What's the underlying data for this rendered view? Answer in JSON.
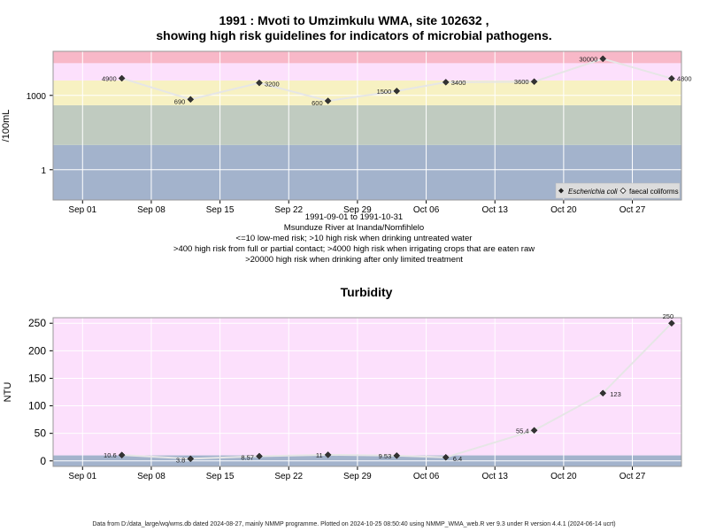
{
  "title_line1": "1991 : Mvoti to Umzimkulu WMA, site 102632 ,",
  "title_line2": "showing high risk guidelines for indicators of microbial pathogens.",
  "notes": [
    "1991-09-01 to 1991-10-31",
    "Msunduze River at Inanda/Nomfihlelo",
    "<=10 low-med risk; >10 high risk when drinking untreated water",
    ">400 high risk from full or partial contact; >4000 high risk when irrigating crops that are eaten raw",
    ">20000 high risk when drinking after only limited treatment"
  ],
  "footer": "Data from D:/data_large/wq/wms.db dated 2024-08-27, mainly NMMP programme. Plotted on 2024-10-25 08:50:40 using NMMP_WMA_web.R ver 9.3 under R version 4.4.1 (2024-06-14 ucrt)",
  "chart_data": [
    {
      "type": "line",
      "title": "",
      "ylabel": "/100mL",
      "y_scale": "log10",
      "ylim": [
        0.06,
        60000
      ],
      "y_ticks": [
        1,
        1000
      ],
      "x_ticks": [
        "Sep 01",
        "Sep 08",
        "Sep 15",
        "Sep 22",
        "Sep 29",
        "Oct 06",
        "Oct 13",
        "Oct 20",
        "Oct 27"
      ],
      "x_range": [
        "1991-08-29",
        "1991-11-01"
      ],
      "grid": true,
      "legend_position": "bottom-right",
      "bands": [
        {
          "from": 0.06,
          "to": 10,
          "color": "#a3b3cc"
        },
        {
          "from": 10,
          "to": 400,
          "color": "#c0cbc0"
        },
        {
          "from": 400,
          "to": 4000,
          "color": "#f7f1c2"
        },
        {
          "from": 4000,
          "to": 20000,
          "color": "#fce0fc"
        },
        {
          "from": 20000,
          "to": 60000,
          "color": "#f8b8c8"
        }
      ],
      "series": [
        {
          "name": "Escherichia coli",
          "marker": "filled",
          "x": [
            "1991-09-05",
            "1991-09-12",
            "1991-09-19",
            "1991-09-26",
            "1991-10-03",
            "1991-10-08",
            "1991-10-17",
            "1991-10-24",
            "1991-10-31"
          ],
          "values": [
            4900,
            690,
            3200,
            600,
            1500,
            3400,
            3600,
            30000,
            4800
          ],
          "labels": [
            "4900",
            "690",
            "3200",
            "600",
            "1500",
            "3400",
            "3600",
            "30000",
            "4800"
          ]
        },
        {
          "name": "faecal coliforms",
          "marker": "open",
          "x": [],
          "values": []
        }
      ]
    },
    {
      "type": "line",
      "title": "Turbidity",
      "ylabel": "NTU",
      "ylim": [
        -10,
        260
      ],
      "y_ticks": [
        0,
        50,
        100,
        150,
        200,
        250
      ],
      "x_ticks": [
        "Sep 01",
        "Sep 08",
        "Sep 15",
        "Sep 22",
        "Sep 29",
        "Oct 06",
        "Oct 13",
        "Oct 20",
        "Oct 27"
      ],
      "x_range": [
        "1991-08-29",
        "1991-11-01"
      ],
      "grid": true,
      "bands": [
        {
          "from": -10,
          "to": 10,
          "color": "#a3b3cc"
        },
        {
          "from": 10,
          "to": 260,
          "color": "#fce0fc"
        }
      ],
      "series": [
        {
          "name": "",
          "x": [
            "1991-09-05",
            "1991-09-12",
            "1991-09-19",
            "1991-09-26",
            "1991-10-03",
            "1991-10-08",
            "1991-10-17",
            "1991-10-24",
            "1991-10-31"
          ],
          "values": [
            10.6,
            3.8,
            8.57,
            11,
            9.53,
            6.4,
            55.4,
            123,
            250
          ],
          "labels": [
            "10.6",
            "3.8",
            "8.57",
            "11",
            "9.53",
            "6.4",
            "55.4",
            "123",
            "250"
          ]
        }
      ]
    }
  ]
}
